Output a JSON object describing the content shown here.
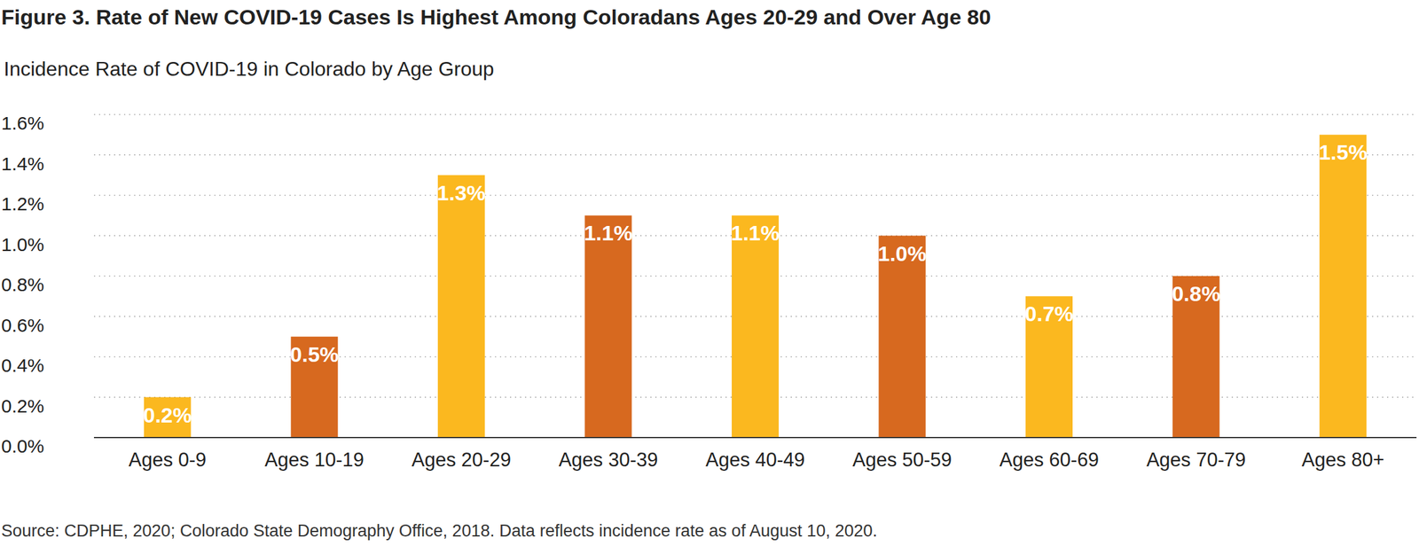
{
  "chart_data": {
    "type": "bar",
    "title": "Figure 3. Rate of New COVID-19 Cases Is Highest Among Coloradans Ages 20-29 and Over Age 80",
    "subtitle": "Incidence Rate of COVID-19 in Colorado by Age Group",
    "source": "Source: CDPHE, 2020; Colorado State Demography Office, 2018. Data reflects incidence rate as of August 10, 2020.",
    "categories": [
      "Ages 0-9",
      "Ages 10-19",
      "Ages 20-29",
      "Ages 30-39",
      "Ages 40-49",
      "Ages 50-59",
      "Ages 60-69",
      "Ages 70-79",
      "Ages 80+"
    ],
    "values": [
      0.2,
      0.5,
      1.3,
      1.1,
      1.1,
      1.0,
      0.7,
      0.8,
      1.5
    ],
    "value_labels": [
      "0.2%",
      "0.5%",
      "1.3%",
      "1.1%",
      "1.1%",
      "1.0%",
      "0.7%",
      "0.8%",
      "1.5%"
    ],
    "colors": [
      "#fbb81f",
      "#d7691f",
      "#fbb81f",
      "#d7691f",
      "#fbb81f",
      "#d7691f",
      "#fbb81f",
      "#d7691f",
      "#fbb81f"
    ],
    "ylim": [
      0,
      1.6
    ],
    "yticks": [
      {
        "value": 0,
        "label": "0.0%"
      },
      {
        "value": 0.2,
        "label": "0.2%"
      },
      {
        "value": 0.4,
        "label": "0.4%"
      },
      {
        "value": 0.6,
        "label": "0.6%"
      },
      {
        "value": 0.8,
        "label": "0.8%"
      },
      {
        "value": 1.0,
        "label": "1.0%"
      },
      {
        "value": 1.2,
        "label": "1.2%"
      },
      {
        "value": 1.4,
        "label": "1.4%"
      },
      {
        "value": 1.6,
        "label": "1.6%"
      }
    ],
    "grid": true,
    "data_labels": true
  }
}
